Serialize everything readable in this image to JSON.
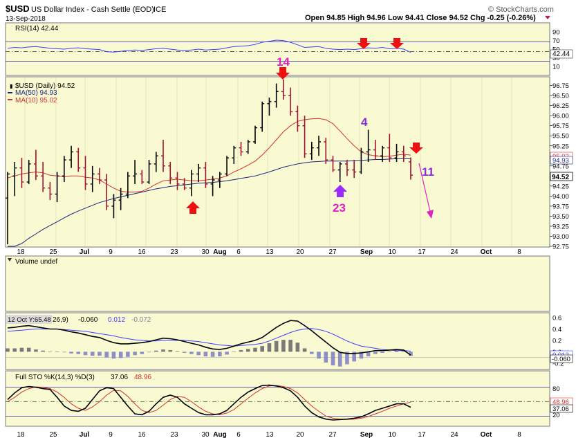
{
  "header": {
    "symbol": "$USD",
    "name": "US Dollar Index - Cash Settle (EOD)",
    "exchange": "ICE",
    "date": "13-Sep-2018",
    "ohlc": "Open 94.85  High 94.96  Low 94.41  Close 94.52  Chg -0.25 (-0.26%)",
    "brand": "© StockCharts.com"
  },
  "colors": {
    "panel_bg": "#fafad2",
    "up": "#000000",
    "down": "#a01030",
    "ma50": "#1a237e",
    "ma10": "#d32f2f",
    "rsi": "#3a3aff",
    "arrow": "#ee1111",
    "label_magenta": "#e020c0",
    "label_purple": "#8a2be2"
  },
  "rsi_panel": {
    "legend": "RSI(14) 42.44",
    "last_badge": "42.44",
    "ticks": [
      "90",
      "70",
      "50",
      "30",
      "10"
    ]
  },
  "price_panel": {
    "legend_main": "$USD (Daily) 94.52",
    "legend_ma50": "MA(50) 94.93",
    "legend_ma10": "MA(10) 95.02",
    "badge_ma10": "95.02",
    "badge_ma50": "94.93",
    "badge_last": "94.52",
    "ticks": [
      "96.75",
      "96.50",
      "96.25",
      "96.00",
      "95.75",
      "95.50",
      "95.25",
      "95.00",
      "94.75",
      "94.50",
      "94.25",
      "94.00",
      "93.75",
      "93.50",
      "93.25",
      "93.00",
      "92.75"
    ],
    "annotations": {
      "a14": "14",
      "a4": "4",
      "a23": "23",
      "a11": "11"
    }
  },
  "x_axis": {
    "labels": [
      "18",
      "25",
      "Jul",
      "9",
      "16",
      "23",
      "30",
      "Aug",
      "6",
      "13",
      "20",
      "27",
      "Sep",
      "10",
      "17",
      "24",
      "Oct",
      "8"
    ]
  },
  "volume_panel": {
    "legend": "Volume undef"
  },
  "macd_panel": {
    "legend_date": "12 Oct Y:65.48",
    "legend_rest": "26,9)",
    "val_macd": "-0.060",
    "val_signal": "0.012",
    "val_hist": "-0.072",
    "badge_signal": "0.012",
    "badge_macd": "-0.060",
    "ticks": [
      "0.6",
      "0.4",
      "0.2",
      "0.0",
      "-0.2"
    ]
  },
  "sto_panel": {
    "legend_prefix": "Full STO %K(14,3) %D(3)",
    "k_val": "37.06",
    "d_val": "48.96",
    "badge_d": "48.96",
    "badge_k": "37.06",
    "ticks": [
      "80",
      "50",
      "20"
    ]
  },
  "chart_data": [
    {
      "type": "bar",
      "name": "price",
      "ylim": [
        92.75,
        96.95
      ],
      "ohlc": [
        [
          93.95,
          94.6,
          92.8,
          94.55
        ],
        [
          94.5,
          94.85,
          94.0,
          94.7
        ],
        [
          94.7,
          94.95,
          94.2,
          94.35
        ],
        [
          94.35,
          94.9,
          94.3,
          94.8
        ],
        [
          94.8,
          95.15,
          94.4,
          94.5
        ],
        [
          94.5,
          94.85,
          94.1,
          94.2
        ],
        [
          94.2,
          94.35,
          93.9,
          94.05
        ],
        [
          94.05,
          94.6,
          93.85,
          94.5
        ],
        [
          94.5,
          95.0,
          94.35,
          94.9
        ],
        [
          94.9,
          95.25,
          94.7,
          95.1
        ],
        [
          95.1,
          95.2,
          94.6,
          94.7
        ],
        [
          94.7,
          95.0,
          94.15,
          94.3
        ],
        [
          94.3,
          94.75,
          94.1,
          94.55
        ],
        [
          94.55,
          94.7,
          94.3,
          94.4
        ],
        [
          94.4,
          94.55,
          93.65,
          93.75
        ],
        [
          93.75,
          94.05,
          93.45,
          93.9
        ],
        [
          93.9,
          94.2,
          93.65,
          94.05
        ],
        [
          94.05,
          94.6,
          93.95,
          94.5
        ],
        [
          94.5,
          94.9,
          94.3,
          94.55
        ],
        [
          94.55,
          94.65,
          94.3,
          94.35
        ],
        [
          94.35,
          94.9,
          94.3,
          94.8
        ],
        [
          94.8,
          95.1,
          94.6,
          95.0
        ],
        [
          95.0,
          95.4,
          94.6,
          94.75
        ],
        [
          94.75,
          94.85,
          94.3,
          94.45
        ],
        [
          94.45,
          94.6,
          94.15,
          94.3
        ],
        [
          94.3,
          94.45,
          94.15,
          94.2
        ],
        [
          94.2,
          94.65,
          94.0,
          94.55
        ],
        [
          94.55,
          94.8,
          94.35,
          94.7
        ],
        [
          94.7,
          94.85,
          94.2,
          94.3
        ],
        [
          94.3,
          94.5,
          94.0,
          94.4
        ],
        [
          94.4,
          94.6,
          94.2,
          94.55
        ],
        [
          94.55,
          95.0,
          94.5,
          94.95
        ],
        [
          94.95,
          95.25,
          94.8,
          95.2
        ],
        [
          95.2,
          95.35,
          95.0,
          95.1
        ],
        [
          95.1,
          95.4,
          95.05,
          95.35
        ],
        [
          95.35,
          95.75,
          95.3,
          95.7
        ],
        [
          95.7,
          96.35,
          95.6,
          96.3
        ],
        [
          96.3,
          96.45,
          96.0,
          96.35
        ],
        [
          96.35,
          96.8,
          96.2,
          96.6
        ],
        [
          96.6,
          96.9,
          96.4,
          96.5
        ],
        [
          96.5,
          96.7,
          96.0,
          96.1
        ],
        [
          96.1,
          96.25,
          95.6,
          95.75
        ],
        [
          95.75,
          96.0,
          94.95,
          95.05
        ],
        [
          95.05,
          95.35,
          94.9,
          95.2
        ],
        [
          95.2,
          95.5,
          95.0,
          95.35
        ],
        [
          95.35,
          95.45,
          94.8,
          94.9
        ],
        [
          94.9,
          95.0,
          94.6,
          94.65
        ],
        [
          94.65,
          94.85,
          94.35,
          94.8
        ],
        [
          94.8,
          94.9,
          94.5,
          94.65
        ],
        [
          94.65,
          94.9,
          94.45,
          94.6
        ],
        [
          94.6,
          95.2,
          94.55,
          95.1
        ],
        [
          95.1,
          95.65,
          94.85,
          95.15
        ],
        [
          95.15,
          95.4,
          94.9,
          95.0
        ],
        [
          95.0,
          95.25,
          94.85,
          95.2
        ],
        [
          95.2,
          95.55,
          94.85,
          94.95
        ],
        [
          94.95,
          95.3,
          94.85,
          95.1
        ],
        [
          95.1,
          95.25,
          94.85,
          95.0
        ],
        [
          94.85,
          94.96,
          94.41,
          94.52
        ]
      ],
      "ma10": [
        94.45,
        94.5,
        94.55,
        94.58,
        94.6,
        94.58,
        94.52,
        94.5,
        94.48,
        94.5,
        94.5,
        94.47,
        94.45,
        94.4,
        94.3,
        94.2,
        94.12,
        94.1,
        94.1,
        94.12,
        94.2,
        94.3,
        94.38,
        94.4,
        94.42,
        94.4,
        94.38,
        94.38,
        94.4,
        94.42,
        94.45,
        94.5,
        94.6,
        94.68,
        94.77,
        94.87,
        95.02,
        95.2,
        95.4,
        95.6,
        95.75,
        95.86,
        95.9,
        95.92,
        95.93,
        95.9,
        95.8,
        95.62,
        95.43,
        95.25,
        95.1,
        95.03,
        95.0,
        94.98,
        94.99,
        95.02,
        95.04,
        95.02
      ],
      "ma50": [
        92.6,
        92.7,
        92.82,
        92.95,
        93.06,
        93.17,
        93.27,
        93.36,
        93.46,
        93.55,
        93.63,
        93.7,
        93.77,
        93.84,
        93.89,
        93.94,
        93.98,
        94.02,
        94.06,
        94.1,
        94.14,
        94.18,
        94.21,
        94.24,
        94.26,
        94.28,
        94.3,
        94.32,
        94.33,
        94.34,
        94.36,
        94.38,
        94.41,
        94.44,
        94.47,
        94.5,
        94.55,
        94.6,
        94.66,
        94.72,
        94.76,
        94.8,
        94.83,
        94.85,
        94.86,
        94.87,
        94.87,
        94.87,
        94.87,
        94.88,
        94.89,
        94.9,
        94.91,
        94.91,
        94.92,
        94.93,
        94.93,
        94.93
      ],
      "x": [
        "Jun 18",
        "Jun 25",
        "Jul 2",
        "Jul 9",
        "Jul 16",
        "Jul 23",
        "Jul 30",
        "Aug 6",
        "Aug 13",
        "Aug 20",
        "Aug 27",
        "Sep 3",
        "Sep 10",
        "Sep 13"
      ]
    },
    {
      "type": "line",
      "name": "RSI(14)",
      "ylim": [
        0,
        100
      ],
      "values": [
        52,
        54,
        53,
        55,
        56,
        54,
        52,
        51,
        50,
        52,
        53,
        51,
        50,
        49,
        44,
        43,
        45,
        47,
        48,
        47,
        49,
        51,
        52,
        50,
        48,
        47,
        48,
        50,
        48,
        49,
        50,
        53,
        56,
        57,
        58,
        61,
        66,
        68,
        71,
        70,
        66,
        60,
        54,
        55,
        56,
        52,
        50,
        49,
        50,
        49,
        51,
        53,
        52,
        54,
        51,
        52,
        50,
        42.44
      ]
    },
    {
      "type": "line",
      "name": "MACD",
      "ylim": [
        -0.3,
        0.65
      ],
      "macd": [
        0.42,
        0.43,
        0.45,
        0.46,
        0.44,
        0.42,
        0.4,
        0.4,
        0.38,
        0.35,
        0.33,
        0.3,
        0.27,
        0.25,
        0.2,
        0.16,
        0.14,
        0.14,
        0.15,
        0.16,
        0.18,
        0.21,
        0.24,
        0.23,
        0.21,
        0.18,
        0.15,
        0.12,
        0.08,
        0.05,
        0.04,
        0.06,
        0.1,
        0.14,
        0.17,
        0.2,
        0.25,
        0.34,
        0.43,
        0.5,
        0.55,
        0.54,
        0.46,
        0.37,
        0.27,
        0.17,
        0.07,
        -0.01,
        -0.03,
        -0.03,
        -0.02,
        0.0,
        0.02,
        0.02,
        0.03,
        0.04,
        0.03,
        -0.06
      ],
      "signal": [
        0.36,
        0.37,
        0.38,
        0.39,
        0.4,
        0.4,
        0.4,
        0.4,
        0.39,
        0.38,
        0.37,
        0.36,
        0.34,
        0.32,
        0.3,
        0.28,
        0.25,
        0.23,
        0.21,
        0.2,
        0.19,
        0.19,
        0.2,
        0.2,
        0.2,
        0.2,
        0.19,
        0.18,
        0.16,
        0.14,
        0.12,
        0.11,
        0.1,
        0.11,
        0.12,
        0.13,
        0.15,
        0.19,
        0.24,
        0.29,
        0.34,
        0.38,
        0.4,
        0.41,
        0.39,
        0.36,
        0.31,
        0.25,
        0.19,
        0.14,
        0.1,
        0.08,
        0.06,
        0.04,
        0.03,
        0.02,
        0.02,
        0.012
      ],
      "histogram_label": "-0.072"
    },
    {
      "type": "line",
      "name": "Full STO %K(14,3) %D(3)",
      "ylim": [
        0,
        100
      ],
      "k": [
        55,
        70,
        82,
        85,
        83,
        80,
        78,
        60,
        40,
        30,
        28,
        35,
        55,
        75,
        82,
        80,
        60,
        40,
        22,
        20,
        28,
        45,
        60,
        65,
        60,
        45,
        35,
        25,
        20,
        20,
        22,
        30,
        45,
        60,
        72,
        80,
        87,
        88,
        86,
        82,
        75,
        60,
        40,
        25,
        15,
        10,
        8,
        9,
        10,
        12,
        15,
        22,
        30,
        35,
        40,
        45,
        45,
        37.06
      ],
      "d": [
        50,
        60,
        72,
        80,
        84,
        83,
        80,
        72,
        60,
        45,
        35,
        30,
        38,
        50,
        65,
        76,
        75,
        62,
        45,
        30,
        25,
        30,
        42,
        55,
        62,
        60,
        50,
        38,
        28,
        22,
        20,
        24,
        32,
        45,
        58,
        70,
        80,
        86,
        87,
        85,
        80,
        70,
        55,
        40,
        28,
        17,
        12,
        10,
        9,
        10,
        12,
        16,
        22,
        28,
        35,
        40,
        45,
        48.96
      ]
    }
  ]
}
